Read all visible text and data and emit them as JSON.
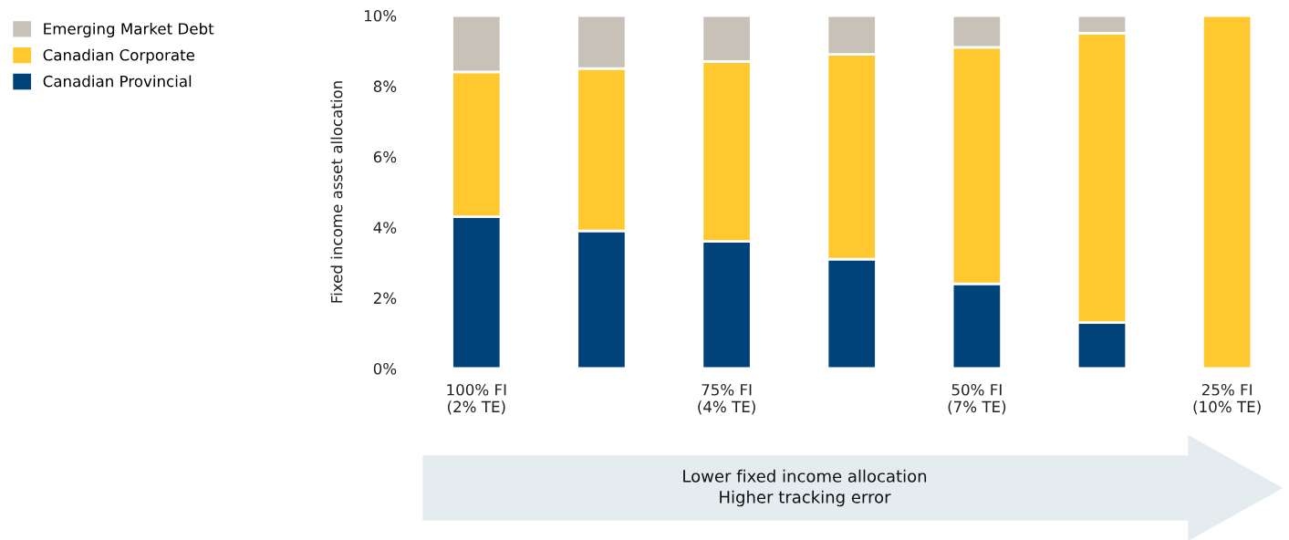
{
  "chart_data": {
    "type": "bar",
    "stacked": true,
    "ylabel": "Fixed income asset allocation",
    "categories": [
      "100% FI\n(2% TE)",
      null,
      "75% FI\n(4% TE)",
      null,
      "50% FI\n(7% TE)",
      null,
      "25% FI\n(10% TE)"
    ],
    "series": [
      {
        "name": "Canadian Provincial",
        "color": "#00427a",
        "values": [
          4.3,
          3.9,
          3.6,
          3.1,
          2.4,
          1.3,
          0
        ]
      },
      {
        "name": "Canadian Corporate",
        "color": "#ffc82e",
        "values": [
          4.1,
          4.6,
          5.1,
          5.8,
          6.7,
          8.2,
          10
        ]
      },
      {
        "name": "Emerging Market Debt",
        "color": "#c8c1b8",
        "values": [
          1.6,
          1.5,
          1.3,
          1.1,
          0.9,
          0.5,
          0
        ]
      }
    ],
    "ylim": [
      0,
      10
    ],
    "yticks": [
      {
        "value": 0,
        "label": "0%"
      },
      {
        "value": 2,
        "label": "2%"
      },
      {
        "value": 4,
        "label": "4%"
      },
      {
        "value": 6,
        "label": "6%"
      },
      {
        "value": 8,
        "label": "8%"
      },
      {
        "value": 10,
        "label": "10%"
      }
    ],
    "legend": "top left",
    "grid": false,
    "annotations": [
      "Lower fixed income allocation\nHigher tracking error"
    ]
  }
}
